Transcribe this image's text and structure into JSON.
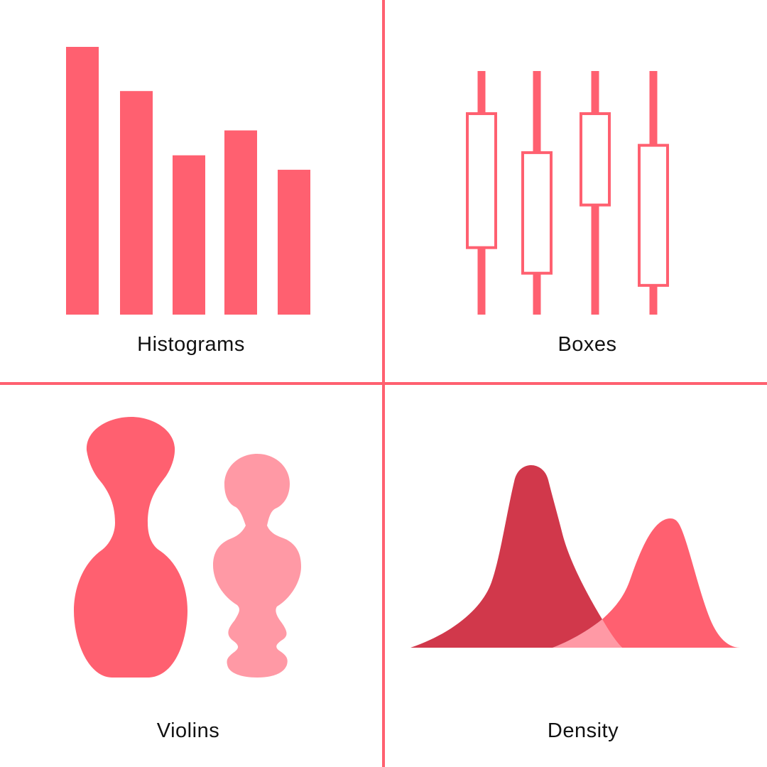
{
  "colors": {
    "primary": "#ff6070",
    "light": "#ff99a5",
    "dark": "#d1384b",
    "divider": "#ff6070",
    "text": "#111111"
  },
  "panels": [
    {
      "id": "histograms",
      "label": "Histograms"
    },
    {
      "id": "boxes",
      "label": "Boxes"
    },
    {
      "id": "violins",
      "label": "Violins"
    },
    {
      "id": "density",
      "label": "Density"
    }
  ],
  "chart_data": [
    {
      "type": "bar",
      "relative_heights": [
        1.0,
        0.835,
        0.595,
        0.688,
        0.541
      ]
    },
    {
      "type": "box",
      "boxes": [
        {
          "whisker_high": 1.0,
          "q3": 0.825,
          "q1": 0.275,
          "whisker_low": 0.0
        },
        {
          "whisker_high": 1.0,
          "q3": 0.665,
          "q1": 0.17,
          "whisker_low": 0.0
        },
        {
          "whisker_high": 1.0,
          "q3": 0.825,
          "q1": 0.45,
          "whisker_low": 0.0
        },
        {
          "whisker_high": 1.0,
          "q3": 0.695,
          "q1": 0.12,
          "whisker_low": 0.0
        }
      ]
    },
    {
      "type": "violin",
      "shapes": [
        "primary",
        "light"
      ]
    },
    {
      "type": "density",
      "curves": [
        "dark",
        "primary"
      ]
    }
  ]
}
